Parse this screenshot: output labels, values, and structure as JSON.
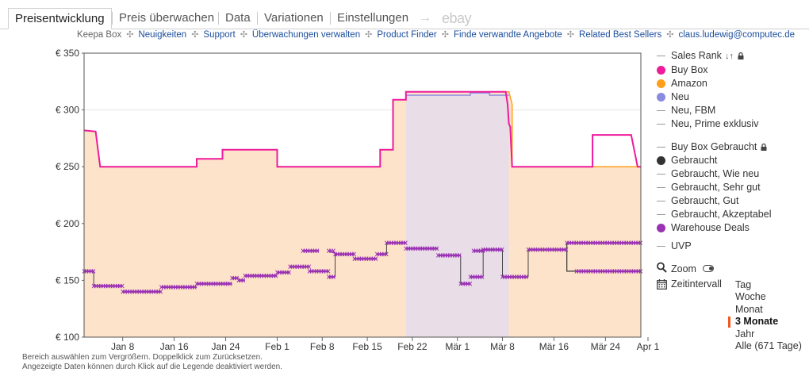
{
  "tabs": [
    {
      "label": "Preisentwicklung",
      "active": true
    },
    {
      "label": "Preis überwachen",
      "active": false
    },
    {
      "label": "Data",
      "active": false
    },
    {
      "label": "Variationen",
      "active": false
    },
    {
      "label": "Einstellungen",
      "active": false
    }
  ],
  "tab_arrow": "→",
  "tab_ebay": "ebay",
  "links": {
    "label": "Keepa Box",
    "items": [
      "Neuigkeiten",
      "Support",
      "Überwachungen verwalten",
      "Product Finder",
      "Finde verwandte Angebote",
      "Related Best Sellers",
      "claus.ludewig@computec.de"
    ]
  },
  "legend": [
    {
      "label": "Sales Rank",
      "symbol": "line",
      "color": "#9a9a9a",
      "icon": "sort-icon",
      "lock": true
    },
    {
      "label": "Buy Box",
      "symbol": "dot",
      "color": "#ee1b9b"
    },
    {
      "label": "Amazon",
      "symbol": "dot",
      "color": "#ff9f1a"
    },
    {
      "label": "Neu",
      "symbol": "dot",
      "color": "#8a8ae0"
    },
    {
      "label": "Neu, FBM",
      "symbol": "line",
      "color": "#9a9a9a"
    },
    {
      "label": "Neu, Prime exklusiv",
      "symbol": "line",
      "color": "#9a9a9a"
    },
    {
      "label": "Buy Box Gebraucht",
      "symbol": "line",
      "color": "#9a9a9a",
      "lock": true
    },
    {
      "label": "Gebraucht",
      "symbol": "dot",
      "color": "#333333"
    },
    {
      "label": "Gebraucht, Wie neu",
      "symbol": "line",
      "color": "#9a9a9a"
    },
    {
      "label": "Gebraucht, Sehr gut",
      "symbol": "line",
      "color": "#9a9a9a"
    },
    {
      "label": "Gebraucht, Gut",
      "symbol": "line",
      "color": "#9a9a9a"
    },
    {
      "label": "Gebraucht, Akzeptabel",
      "symbol": "line",
      "color": "#9a9a9a"
    },
    {
      "label": "Warehouse Deals",
      "symbol": "dot",
      "color": "#9a32b4"
    },
    {
      "label": "UVP",
      "symbol": "line",
      "color": "#9a9a9a"
    }
  ],
  "zoom_label": "Zoom",
  "interval_label": "Zeitintervall",
  "ranges": [
    {
      "label": "Tag",
      "active": false
    },
    {
      "label": "Woche",
      "active": false
    },
    {
      "label": "Monat",
      "active": false
    },
    {
      "label": "3 Monate",
      "active": true
    },
    {
      "label": "Jahr",
      "active": false
    },
    {
      "label": "Alle (671 Tage)",
      "active": false
    }
  ],
  "footnote": [
    "Bereich auswählen zum Vergrößern. Doppelklick zum Zurücksetzen.",
    "Angezeigte Daten können durch Klick auf die Legende deaktiviert werden."
  ],
  "colors": {
    "buy_box": "#ee1b9b",
    "amazon": "#ff9f1a",
    "amazon_fill": "#fde3c9",
    "neu": "#8a8ae0",
    "gebraucht": "#333333",
    "warehouse": "#9a32b4",
    "grid": "#e6e6e6"
  },
  "chart_data": {
    "type": "line",
    "x_domain": [
      0,
      86.5
    ],
    "y_domain": [
      100,
      350
    ],
    "y_ticks": [
      {
        "value": 100,
        "label": "€ 100"
      },
      {
        "value": 150,
        "label": "€ 150"
      },
      {
        "value": 200,
        "label": "€ 200"
      },
      {
        "value": 250,
        "label": "€ 250"
      },
      {
        "value": 300,
        "label": "€ 300"
      },
      {
        "value": 350,
        "label": "€ 350"
      }
    ],
    "x_ticks": [
      {
        "day": 6,
        "label": "Jan 8"
      },
      {
        "day": 14,
        "label": "Jan 16"
      },
      {
        "day": 22,
        "label": "Jan 24"
      },
      {
        "day": 30,
        "label": "Feb 1"
      },
      {
        "day": 37,
        "label": "Feb 8"
      },
      {
        "day": 44,
        "label": "Feb 15"
      },
      {
        "day": 51,
        "label": "Feb 22"
      },
      {
        "day": 58,
        "label": "Mär 1"
      },
      {
        "day": 65,
        "label": "Mär 8"
      },
      {
        "day": 73,
        "label": "Mär 16"
      },
      {
        "day": 81,
        "label": "Mär 24"
      },
      {
        "day": 89,
        "label": "Apr 1"
      }
    ],
    "series": [
      {
        "name": "Amazon",
        "key": "amazon",
        "points": [
          [
            0,
            282
          ],
          [
            1.8,
            281
          ],
          [
            2.5,
            250
          ],
          [
            17.5,
            250
          ],
          [
            17.5,
            257
          ],
          [
            21.5,
            257
          ],
          [
            21.5,
            265
          ],
          [
            30,
            265
          ],
          [
            30,
            250
          ],
          [
            46,
            250
          ],
          [
            46,
            265
          ],
          [
            48,
            265
          ],
          [
            48,
            309
          ],
          [
            50,
            309
          ],
          [
            50,
            316
          ],
          [
            66,
            316
          ],
          [
            66.5,
            305
          ],
          [
            66.5,
            250
          ],
          [
            86.5,
            250
          ]
        ]
      },
      {
        "name": "Neu",
        "key": "neu",
        "points": [
          [
            50,
            313
          ],
          [
            60,
            313
          ],
          [
            60,
            315
          ],
          [
            63,
            315
          ],
          [
            63,
            313
          ],
          [
            66,
            313
          ]
        ]
      },
      {
        "name": "Buy Box",
        "key": "buy_box",
        "points": [
          [
            0,
            282
          ],
          [
            1.8,
            281
          ],
          [
            2.5,
            250
          ],
          [
            17.5,
            250
          ],
          [
            17.5,
            257
          ],
          [
            21.5,
            257
          ],
          [
            21.5,
            265
          ],
          [
            30,
            265
          ],
          [
            30,
            250
          ],
          [
            46,
            250
          ],
          [
            46,
            265
          ],
          [
            48,
            265
          ],
          [
            48,
            309
          ],
          [
            50,
            309
          ],
          [
            50,
            316
          ],
          [
            65.5,
            316
          ],
          [
            65.8,
            305
          ],
          [
            66,
            288
          ],
          [
            66.2,
            285
          ],
          [
            66.5,
            250
          ],
          [
            79,
            250
          ],
          [
            79,
            278
          ],
          [
            85,
            278
          ],
          [
            86,
            250
          ],
          [
            86.5,
            250
          ]
        ]
      },
      {
        "name": "Warehouse Deals",
        "key": "warehouse",
        "points": [
          [
            0,
            158
          ],
          [
            1.5,
            158
          ],
          [
            1.5,
            145
          ],
          [
            6,
            145
          ],
          [
            6,
            140
          ],
          [
            12,
            140
          ],
          [
            12,
            144
          ],
          [
            17.5,
            144
          ],
          [
            17.5,
            147
          ],
          [
            23,
            147
          ],
          [
            23,
            152
          ],
          [
            24,
            152
          ],
          [
            24,
            150
          ],
          [
            25,
            150
          ],
          [
            25,
            154
          ],
          [
            30,
            154
          ],
          [
            30,
            157
          ],
          [
            32,
            157
          ],
          [
            32,
            162
          ],
          [
            35,
            162
          ],
          [
            35,
            158
          ],
          [
            38,
            158
          ],
          [
            38,
            153
          ],
          [
            39,
            153
          ],
          [
            39,
            173
          ],
          [
            42,
            173
          ],
          [
            42,
            169
          ],
          [
            45.5,
            169
          ],
          [
            45.5,
            173
          ],
          [
            47,
            173
          ],
          [
            47,
            183
          ],
          [
            50,
            183
          ],
          [
            50,
            178
          ],
          [
            55,
            178
          ],
          [
            55,
            172
          ],
          [
            58.5,
            172
          ],
          [
            58.5,
            147
          ],
          [
            60,
            147
          ],
          [
            60,
            153
          ],
          [
            62,
            153
          ],
          [
            62,
            177
          ],
          [
            65,
            177
          ],
          [
            65,
            153
          ],
          [
            69,
            153
          ],
          [
            69,
            177
          ],
          [
            75,
            177
          ],
          [
            75,
            183
          ],
          [
            86.5,
            183
          ]
        ]
      },
      {
        "name": "Warehouse Deals (2)",
        "key": "warehouse",
        "points": [
          [
            34,
            176
          ],
          [
            36.5,
            176
          ],
          [
            38,
            176
          ],
          [
            39,
            174
          ],
          [
            60.5,
            176
          ],
          [
            62,
            176
          ],
          [
            76.5,
            158
          ],
          [
            86.5,
            158
          ]
        ]
      },
      {
        "name": "Gebraucht",
        "key": "gebraucht",
        "points": [
          [
            75,
            183
          ],
          [
            75,
            158
          ],
          [
            86.5,
            158
          ]
        ]
      }
    ]
  }
}
